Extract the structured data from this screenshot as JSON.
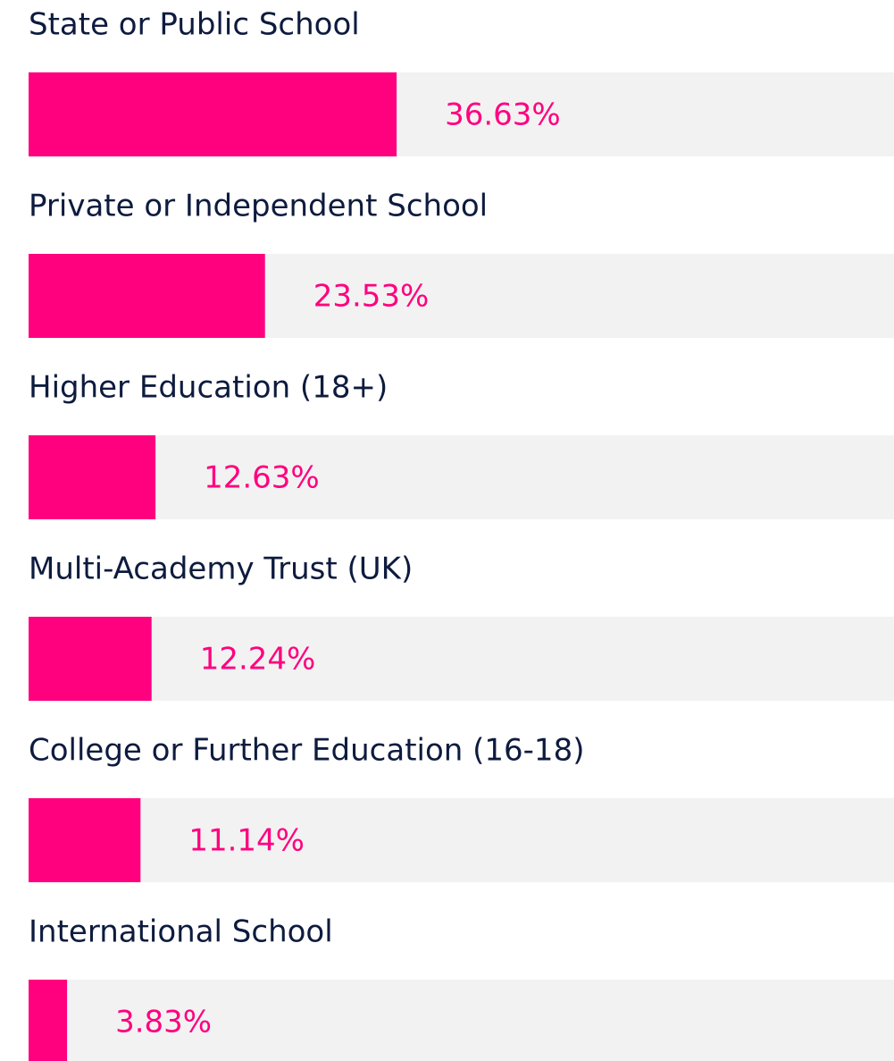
{
  "chart_data": {
    "type": "bar",
    "orientation": "horizontal",
    "categories": [
      "State or Public School",
      "Private or Independent School",
      "Higher Education (18+)",
      "Multi-Academy Trust (UK)",
      "College or Further Education (16-18)",
      "International School"
    ],
    "values": [
      36.63,
      23.53,
      12.63,
      12.24,
      11.14,
      3.83
    ],
    "value_labels": [
      "36.63%",
      "23.53%",
      "12.63%",
      "12.24%",
      "11.14%",
      "3.83%"
    ],
    "color": "#ff007f"
  }
}
